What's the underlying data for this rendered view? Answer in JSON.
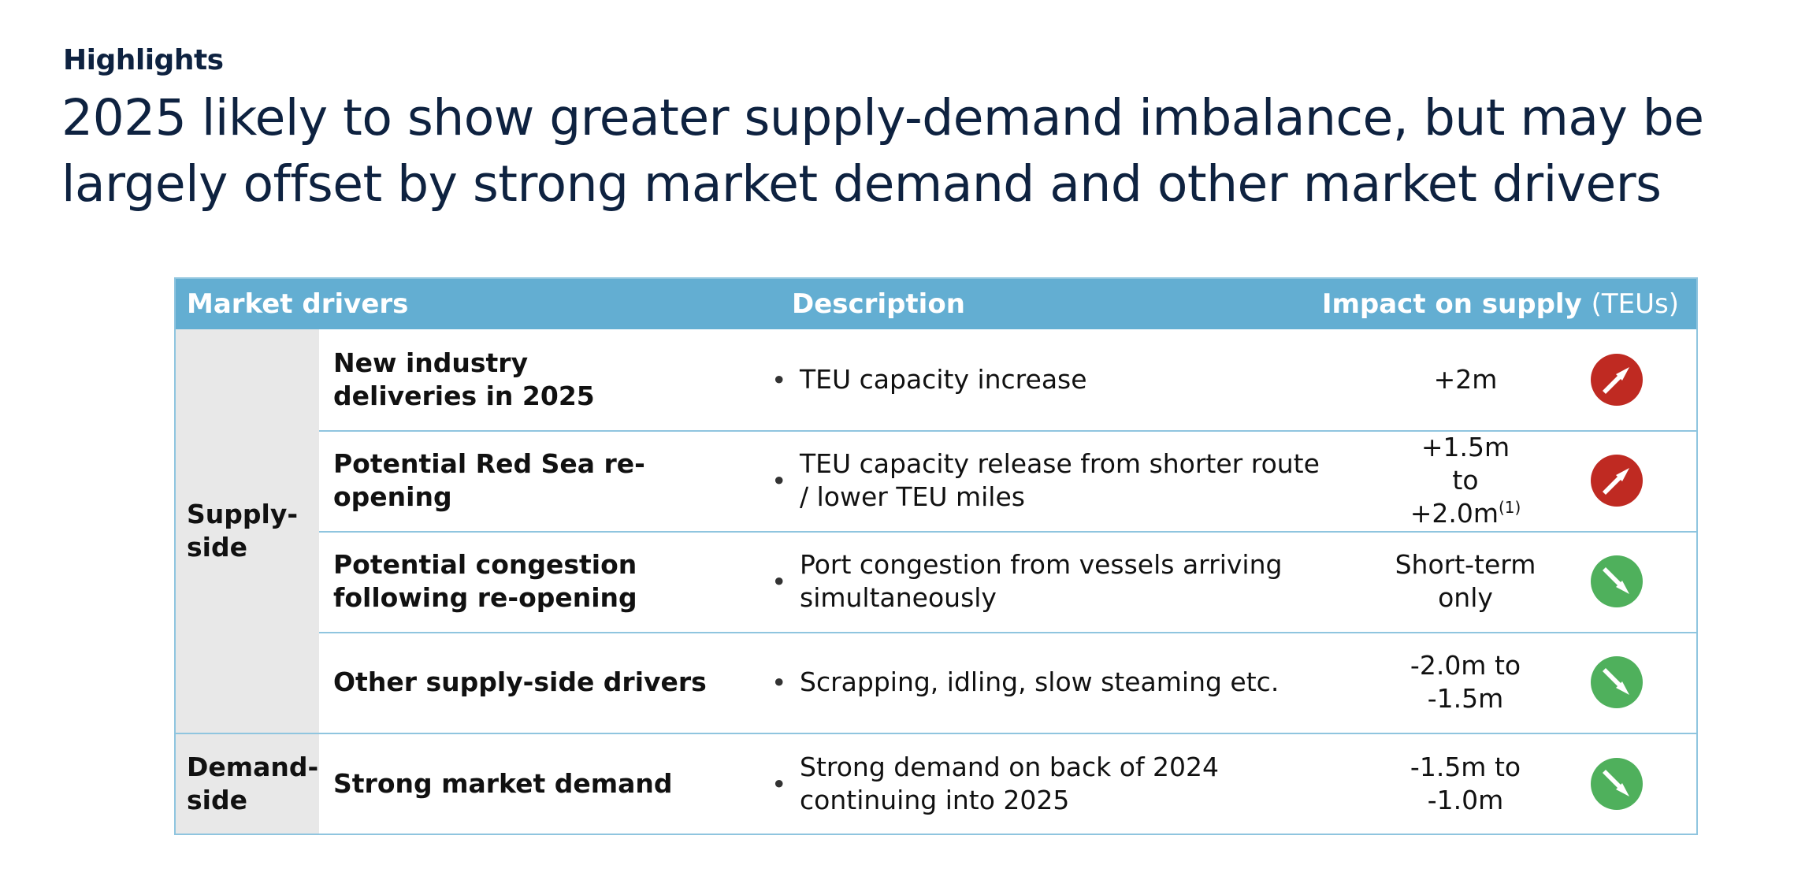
{
  "eyebrow": "Highlights",
  "headline": "2025 likely to show greater supply-demand imbalance, but may be largely offset by strong market demand and other market drivers",
  "table": {
    "headers": {
      "drivers": "Market drivers",
      "description": "Description",
      "impact": "Impact on supply",
      "impact_unit": "(TEUs)"
    },
    "categories": {
      "supply": "Supply-side",
      "demand": "Demand-side"
    },
    "rows": [
      {
        "driver": "New industry deliveries in 2025",
        "description": "TEU capacity increase",
        "impact": "+2m",
        "impact_footnote": "",
        "direction": "up",
        "arrow_icon": "arrow-up-right-icon",
        "color": "#bf2a22"
      },
      {
        "driver": "Potential Red Sea re-opening",
        "description": "TEU capacity release from shorter route / lower TEU miles",
        "impact": "+1.5m to +2.0m",
        "impact_footnote": "(1)",
        "direction": "up",
        "arrow_icon": "arrow-up-right-icon",
        "color": "#bf2a22"
      },
      {
        "driver": "Potential congestion following re-opening",
        "description": "Port congestion from vessels arriving simultaneously",
        "impact": "Short-term only",
        "impact_footnote": "",
        "direction": "down",
        "arrow_icon": "arrow-down-right-icon",
        "color": "#4fb05c"
      },
      {
        "driver": "Other supply-side drivers",
        "description": "Scrapping, idling, slow steaming etc.",
        "impact": "-2.0m to -1.5m",
        "impact_footnote": "",
        "direction": "down",
        "arrow_icon": "arrow-down-right-icon",
        "color": "#4fb05c"
      },
      {
        "driver": "Strong market demand",
        "description": "Strong demand on back of 2024 continuing into 2025",
        "impact": "-1.5m to -1.0m",
        "impact_footnote": "",
        "direction": "down",
        "arrow_icon": "arrow-down-right-icon",
        "color": "#4fb05c"
      }
    ]
  }
}
